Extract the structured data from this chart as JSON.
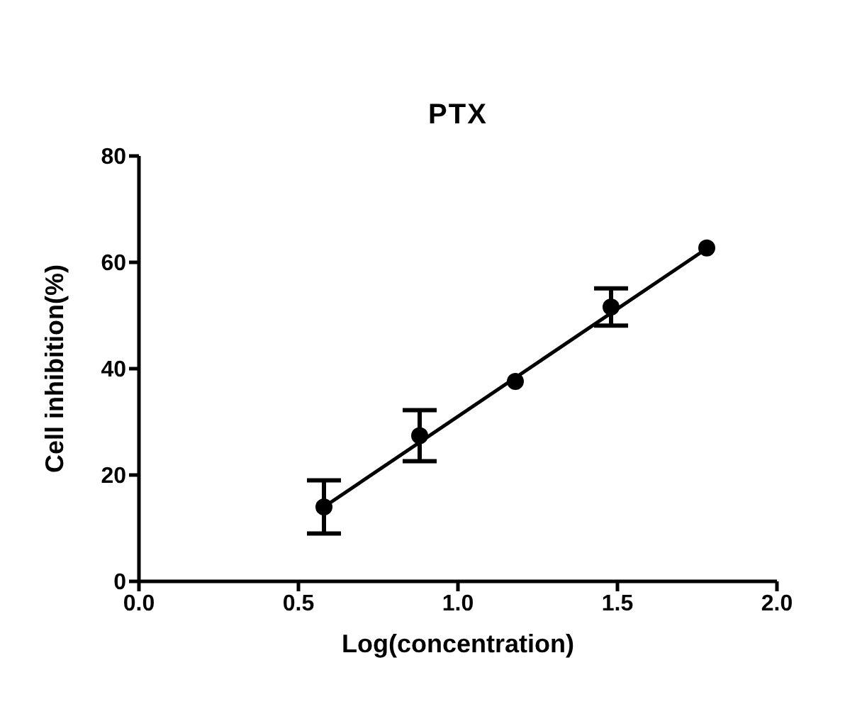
{
  "chart_data": {
    "type": "scatter",
    "title": "PTX",
    "xlabel": "Log(concentration)",
    "ylabel": "Cell inhibition(%)",
    "xlim": [
      0,
      2
    ],
    "xticks": [
      {
        "value": 0,
        "label": "0.0"
      },
      {
        "value": 0.5,
        "label": "0.5"
      },
      {
        "value": 1,
        "label": "1.0"
      },
      {
        "value": 1.5,
        "label": "1.5"
      },
      {
        "value": 2,
        "label": "2.0"
      }
    ],
    "ylim": [
      0,
      80
    ],
    "yticks": [
      0,
      20,
      40,
      60,
      80
    ],
    "grid": false,
    "legend": false,
    "marker": "circle",
    "series": [
      {
        "type": "scatter",
        "color": "#000000",
        "x": [
          0.58,
          0.88,
          1.18,
          1.48,
          1.78
        ],
        "values": [
          14,
          27.4,
          37.6,
          51.6,
          62.7
        ],
        "errors": [
          5,
          4.8,
          null,
          3.5,
          null
        ]
      },
      {
        "type": "line",
        "color": "#000000",
        "line_style": "solid",
        "marker": "none",
        "x": [
          0.58,
          1.78
        ],
        "values": [
          14,
          62.6
        ]
      }
    ]
  }
}
